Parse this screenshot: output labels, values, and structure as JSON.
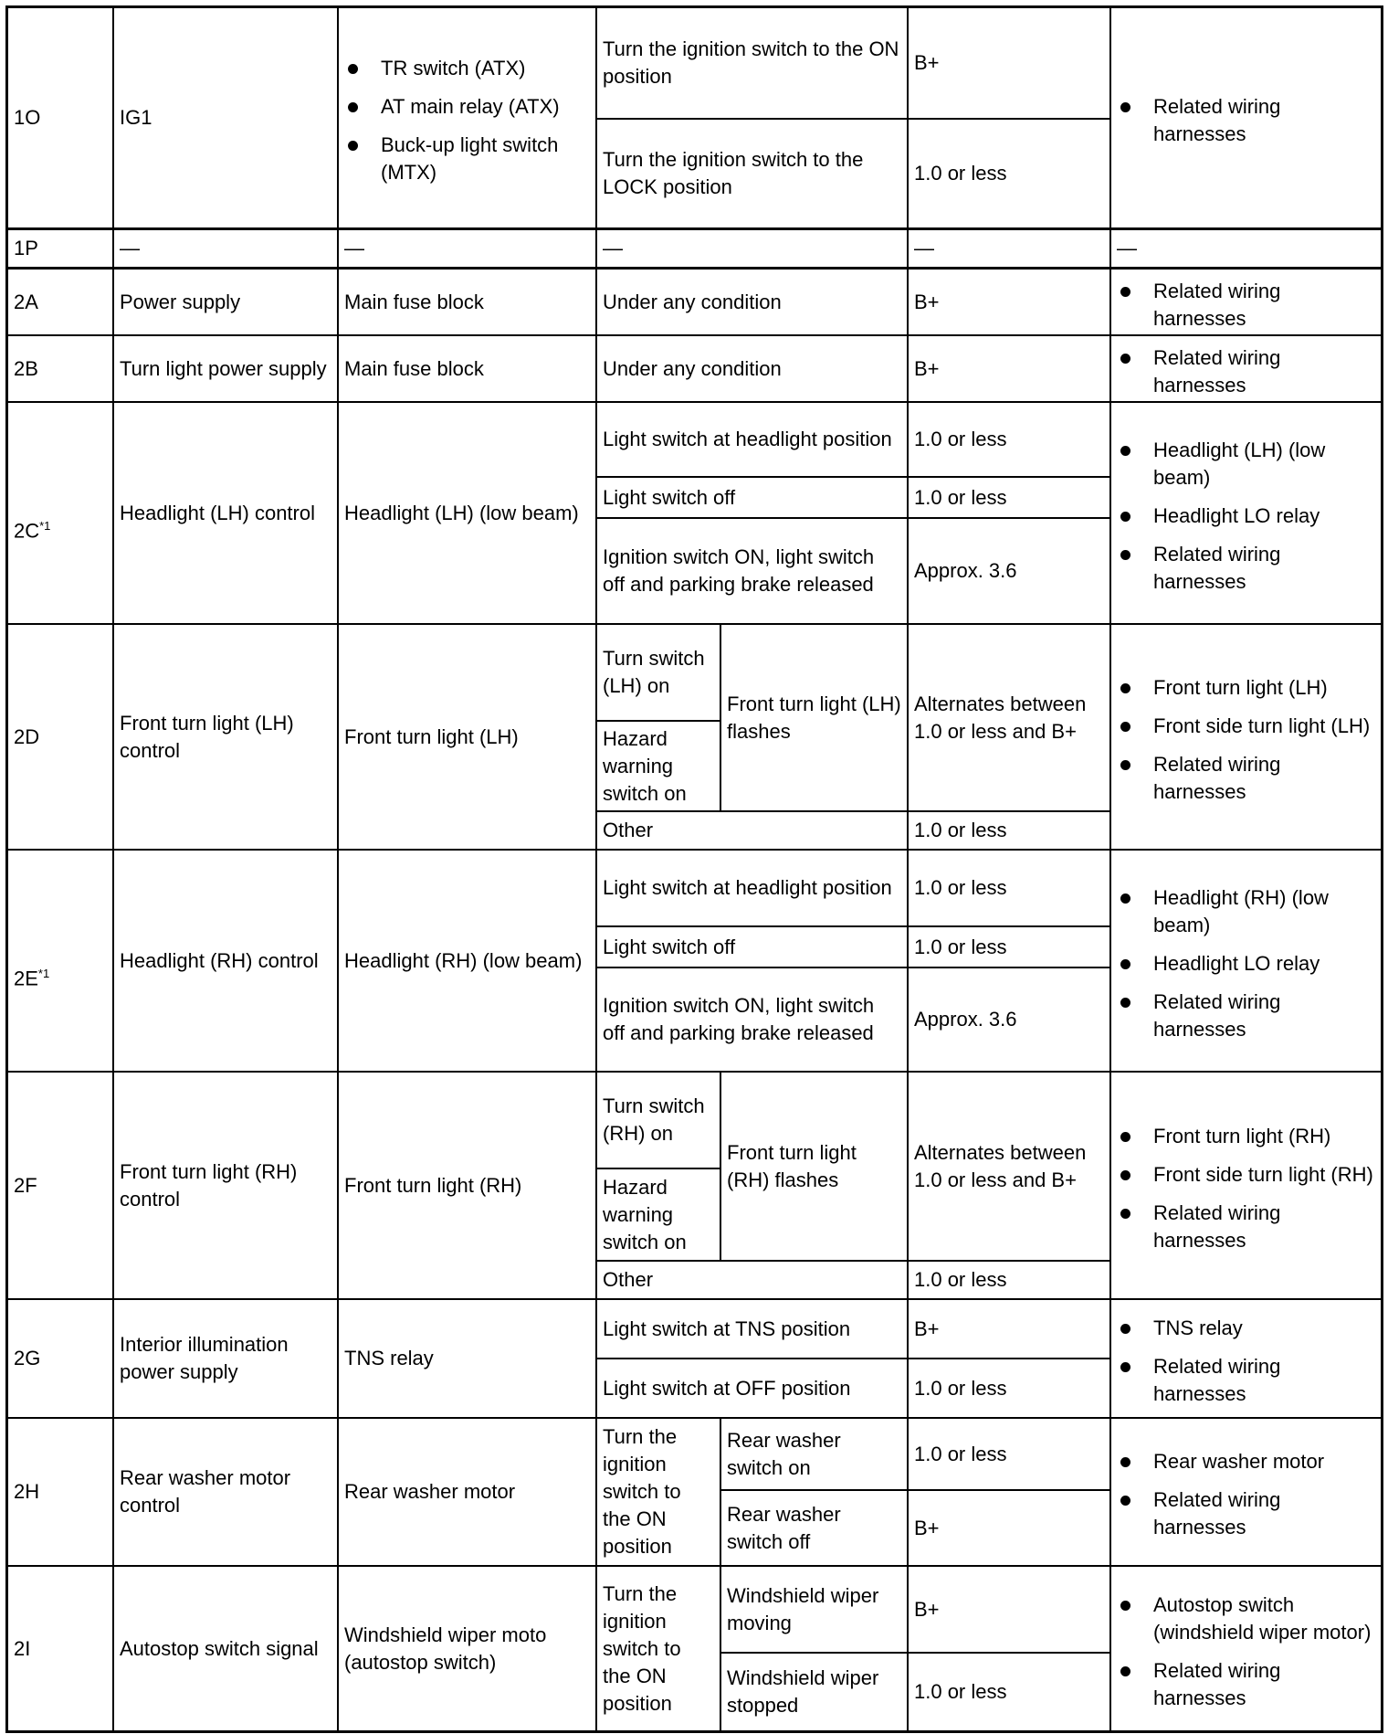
{
  "rows": {
    "r1O": {
      "terminal": "1O",
      "signal": "IG1",
      "connected": [
        "TR switch (ATX)",
        "AT main relay (ATX)",
        "Buck-up light switch (MTX)"
      ],
      "conditions": [
        "Turn the ignition switch to the ON position",
        "Turn the ignition switch to the LOCK position"
      ],
      "voltages": [
        "B+",
        "1.0 or less"
      ],
      "inspection": [
        "Related wiring harnesses"
      ]
    },
    "r1P": {
      "terminal": "1P",
      "signal": "—",
      "connected": "—",
      "condition": "—",
      "voltage": "—",
      "inspection": "—"
    },
    "r2A": {
      "terminal": "2A",
      "signal": "Power supply",
      "connected": "Main fuse block",
      "condition": "Under any condition",
      "voltage": "B+",
      "inspection": [
        "Related wiring harnesses"
      ]
    },
    "r2B": {
      "terminal": "2B",
      "signal": "Turn light power supply",
      "connected": "Main fuse block",
      "condition": "Under any condition",
      "voltage": "B+",
      "inspection": [
        "Related wiring harnesses"
      ]
    },
    "r2C": {
      "terminal": "2C",
      "sup": "*1",
      "signal": "Headlight (LH) control",
      "connected": "Headlight (LH) (low beam)",
      "conditions": [
        "Light switch at headlight position",
        "Light switch off",
        "Ignition switch ON, light switch off and parking brake released"
      ],
      "voltages": [
        "1.0 or less",
        "1.0 or less",
        "Approx. 3.6"
      ],
      "inspection": [
        "Headlight (LH) (low beam)",
        "Headlight LO relay",
        "Related wiring harnesses"
      ]
    },
    "r2D": {
      "terminal": "2D",
      "signal": "Front turn light (LH) control",
      "connected": "Front turn light (LH)",
      "conditions": [
        "Turn switch (LH) on",
        "Hazard warning switch on",
        "Front turn light (LH) flashes",
        "Other"
      ],
      "voltages": [
        "Alternates between 1.0 or less and B+",
        "1.0 or less"
      ],
      "inspection": [
        "Front turn light (LH)",
        "Front side turn light (LH)",
        "Related wiring harnesses"
      ]
    },
    "r2E": {
      "terminal": "2E",
      "sup": "*1",
      "signal": "Headlight (RH) control",
      "connected": "Headlight (RH) (low beam)",
      "conditions": [
        "Light switch at headlight position",
        "Light switch off",
        "Ignition switch ON, light switch off and parking brake released"
      ],
      "voltages": [
        "1.0 or less",
        "1.0 or less",
        "Approx. 3.6"
      ],
      "inspection": [
        "Headlight (RH) (low beam)",
        "Headlight LO relay",
        "Related wiring harnesses"
      ]
    },
    "r2F": {
      "terminal": "2F",
      "signal": "Front turn light (RH) control",
      "connected": "Front turn light (RH)",
      "conditions": [
        "Turn switch (RH) on",
        "Hazard warning switch on",
        "Front turn light (RH) flashes",
        "Other"
      ],
      "voltages": [
        "Alternates between 1.0 or less and B+",
        "1.0 or less"
      ],
      "inspection": [
        "Front turn light (RH)",
        "Front side turn light (RH)",
        "Related wiring harnesses"
      ]
    },
    "r2G": {
      "terminal": "2G",
      "signal": "Interior illumination power supply",
      "connected": "TNS relay",
      "conditions": [
        "Light switch at TNS position",
        "Light switch at OFF position"
      ],
      "voltages": [
        "B+",
        "1.0 or less"
      ],
      "inspection": [
        "TNS relay",
        "Related wiring harnesses"
      ]
    },
    "r2H": {
      "terminal": "2H",
      "signal": "Rear washer motor control",
      "connected": "Rear washer motor",
      "conditions": [
        "Turn the ignition switch to the ON position",
        "Rear washer switch on",
        "Rear washer switch off"
      ],
      "voltages": [
        "1.0 or less",
        "B+"
      ],
      "inspection": [
        "Rear washer motor",
        "Related wiring harnesses"
      ]
    },
    "r2I": {
      "terminal": "2I",
      "signal": "Autostop switch signal",
      "connected": "Windshield wiper moto (autostop switch)",
      "conditions": [
        "Turn the ignition switch to the ON position",
        "Windshield wiper moving",
        "Windshield wiper stopped"
      ],
      "voltages": [
        "B+",
        "1.0 or less"
      ],
      "inspection": [
        "Autostop switch (windshield wiper motor)",
        "Related wiring harnesses"
      ]
    }
  }
}
